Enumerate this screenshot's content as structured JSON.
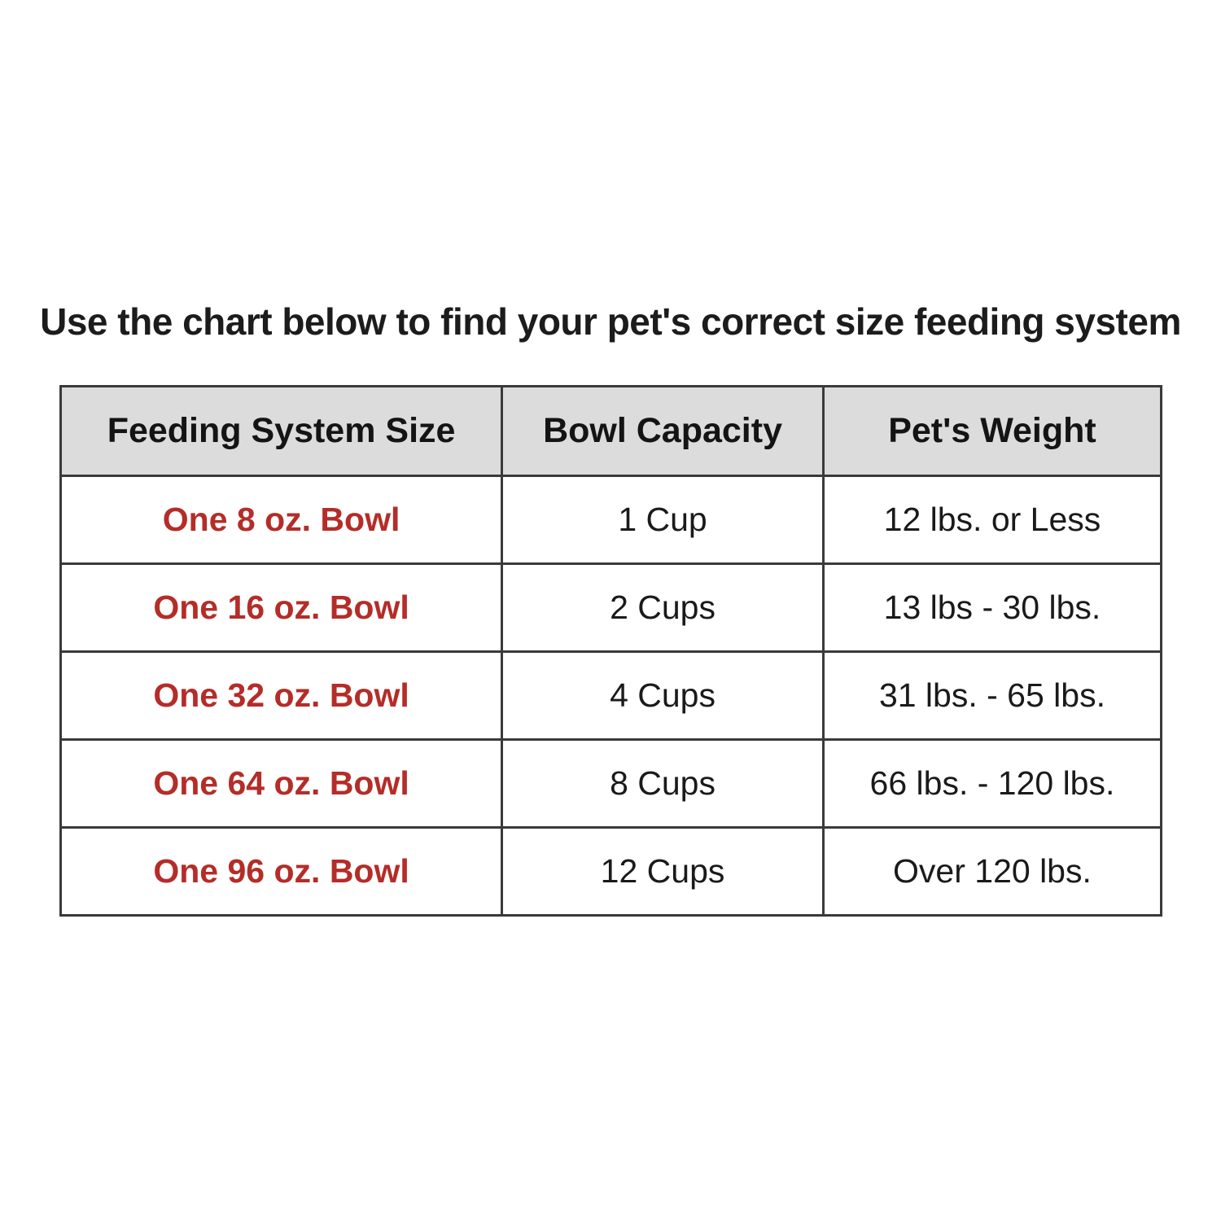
{
  "title": "Use the chart below to find your pet's correct size feeding system",
  "colors": {
    "accent_red": "#b42d28",
    "header_background": "#dcdcdc",
    "table_border": "#3a3a3a",
    "text": "#1a1a1a",
    "page_background": "#ffffff"
  },
  "chart_data": {
    "type": "table",
    "title": "Use the chart below to find your pet's correct size feeding system",
    "columns": [
      "Feeding System Size",
      "Bowl Capacity",
      "Pet's Weight"
    ],
    "rows": [
      [
        "One 8 oz. Bowl",
        "1 Cup",
        "12 lbs. or Less"
      ],
      [
        "One 16 oz. Bowl",
        "2 Cups",
        "13 lbs - 30 lbs."
      ],
      [
        "One 32 oz. Bowl",
        "4 Cups",
        "31 lbs. - 65 lbs."
      ],
      [
        "One 64 oz. Bowl",
        "8 Cups",
        "66 lbs. - 120 lbs."
      ],
      [
        "One 96 oz. Bowl",
        "12 Cups",
        "Over 120 lbs."
      ]
    ],
    "layout": {
      "header_row_shaded": true,
      "first_column_style": "bold-red",
      "grid": "full-borders"
    }
  }
}
